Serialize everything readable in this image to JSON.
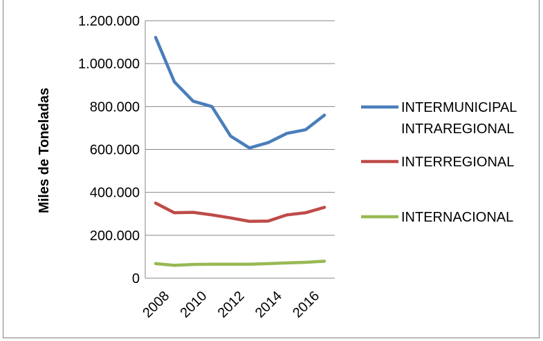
{
  "chart_data": {
    "type": "line",
    "title": "",
    "xlabel": "",
    "ylabel": "Miles de Toneladas",
    "x": [
      2008,
      2009,
      2010,
      2011,
      2012,
      2013,
      2014,
      2015,
      2016,
      2017
    ],
    "x_tick_labels": [
      "2008",
      "2010",
      "2012",
      "2014",
      "2016"
    ],
    "y_tick_labels": [
      "0",
      "200.000",
      "400.000",
      "600.000",
      "800.000",
      "1.000.000",
      "1.200.000"
    ],
    "ylim": [
      0,
      1200000
    ],
    "grid": true,
    "legend_position": "right",
    "series": [
      {
        "name": "INTERMUNICIPAL INTRAREGIONAL",
        "name_lines": [
          "INTERMUNICIPAL",
          "INTRAREGIONAL"
        ],
        "color": "#4a7ebb",
        "values": [
          1122000,
          915000,
          825000,
          800000,
          662000,
          607000,
          632000,
          675000,
          692000,
          760000
        ]
      },
      {
        "name": "INTERREGIONAL",
        "name_lines": [
          "INTERREGIONAL"
        ],
        "color": "#be4b48",
        "values": [
          350000,
          305000,
          307000,
          295000,
          281000,
          265000,
          266000,
          295000,
          305000,
          330000
        ]
      },
      {
        "name": "INTERNACIONAL",
        "name_lines": [
          "INTERNACIONAL"
        ],
        "color": "#98b954",
        "values": [
          68000,
          60000,
          64000,
          65000,
          65000,
          65000,
          68000,
          71000,
          74000,
          79000
        ]
      }
    ]
  }
}
